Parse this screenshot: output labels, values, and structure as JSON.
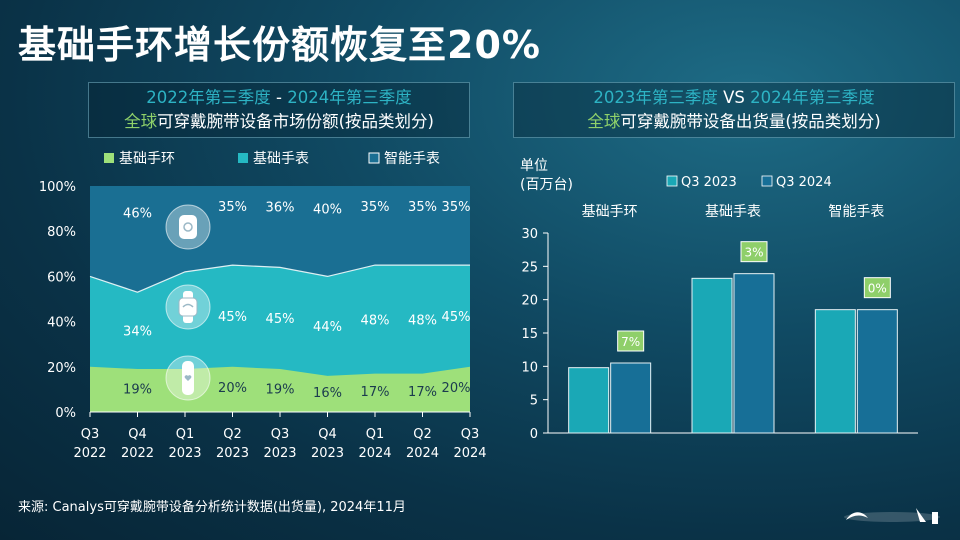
{
  "title": "基础手环增长份额恢复至20%",
  "left_header": {
    "period_start": "2022年第三季度",
    "dash": " - ",
    "period_end": "2024年第三季度",
    "global": "全球",
    "subtitle": "可穿戴腕带设备市场份额(按品类划分)"
  },
  "right_header": {
    "period_a": "2023年第三季度",
    "vs": " VS ",
    "period_b": "2024年第三季度",
    "global": "全球",
    "subtitle": "可穿戴腕带设备出货量(按品类划分)"
  },
  "source": "来源: Canalys可穿戴腕带设备分析统计数据(出货量), 2024年11月",
  "colors": {
    "basic_band": "#9ee07a",
    "basic_watch": "#25b9c3",
    "smart_watch": "#1a6f93",
    "q3_2023": "#1aa8b6",
    "q3_2024": "#176f97",
    "growth_label_bg": "#8fcf6a"
  },
  "icons": [
    "smartwatch-icon",
    "basic-watch-icon",
    "fitness-band-icon"
  ],
  "chart_data": [
    {
      "type": "area",
      "stacked": true,
      "x_lines": [
        [
          "Q3",
          "2022"
        ],
        [
          "Q4",
          "2022"
        ],
        [
          "Q1",
          "2023"
        ],
        [
          "Q2",
          "2023"
        ],
        [
          "Q3",
          "2023"
        ],
        [
          "Q4",
          "2023"
        ],
        [
          "Q1",
          "2024"
        ],
        [
          "Q2",
          "2024"
        ],
        [
          "Q3",
          "2024"
        ]
      ],
      "series": [
        {
          "name": "基础手环",
          "values": [
            20,
            19,
            19,
            20,
            19,
            16,
            17,
            17,
            20
          ]
        },
        {
          "name": "基础手表",
          "values": [
            40,
            34,
            43,
            45,
            45,
            44,
            48,
            48,
            45
          ]
        },
        {
          "name": "智能手表",
          "values": [
            40,
            46,
            38,
            35,
            36,
            40,
            35,
            35,
            35
          ]
        }
      ],
      "data_labels": {
        "基础手环": [
          null,
          "19%",
          null,
          "20%",
          "19%",
          "16%",
          "17%",
          "17%",
          "20%"
        ],
        "基础手表": [
          null,
          "34%",
          null,
          "45%",
          "45%",
          "44%",
          "48%",
          "48%",
          "45%"
        ],
        "智能手表": [
          null,
          "46%",
          null,
          "35%",
          "36%",
          "40%",
          "35%",
          "35%",
          "35%"
        ]
      },
      "ylim": [
        0,
        100
      ],
      "yticks": [
        "0%",
        "20%",
        "40%",
        "60%",
        "80%",
        "100%"
      ],
      "grid": false,
      "legend": "top"
    },
    {
      "type": "bar",
      "unit_label": [
        "单位",
        "(百万台)"
      ],
      "categories": [
        "基础手环",
        "基础手表",
        "智能手表"
      ],
      "series": [
        {
          "name": "Q3 2023",
          "values": [
            9.8,
            23.2,
            18.5
          ]
        },
        {
          "name": "Q3 2024",
          "values": [
            10.5,
            23.9,
            18.5
          ]
        }
      ],
      "growth_labels": [
        "7%",
        "3%",
        "0%"
      ],
      "ylim": [
        0,
        30
      ],
      "yticks": [
        "0",
        "5",
        "10",
        "15",
        "20",
        "25",
        "30"
      ],
      "grid": false,
      "legend": "top"
    }
  ]
}
